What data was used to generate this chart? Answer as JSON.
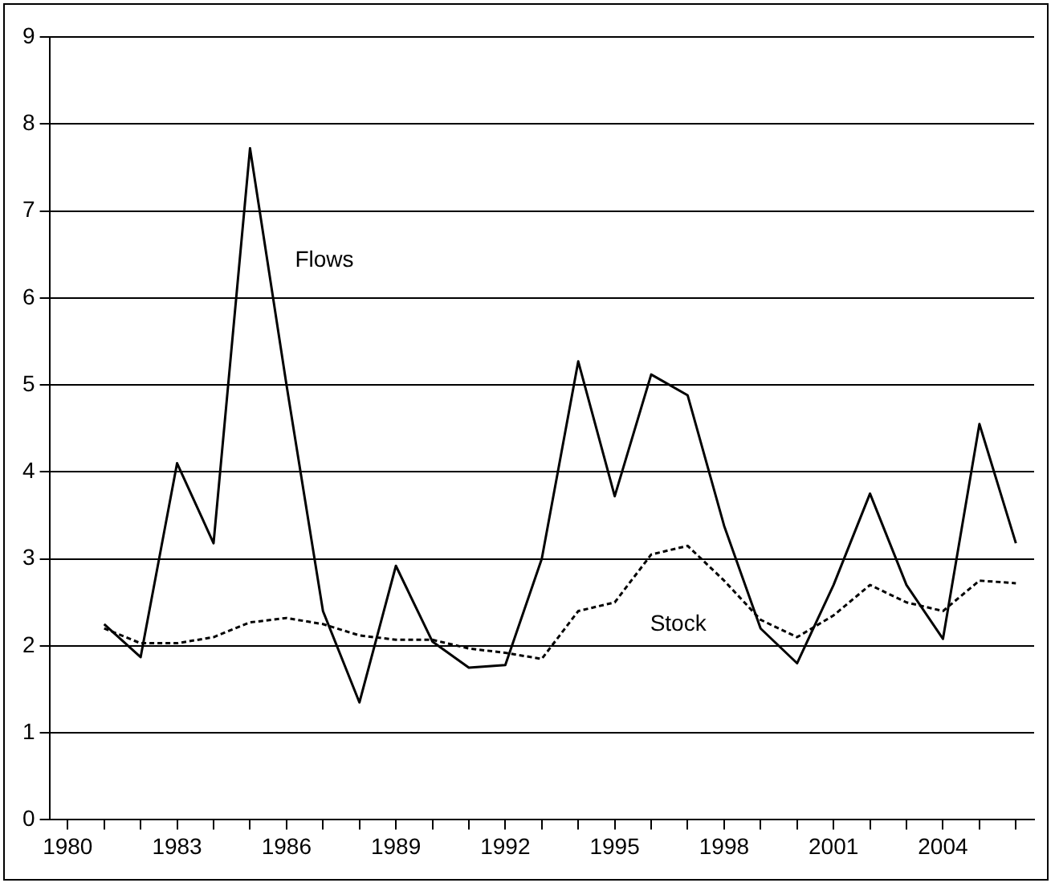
{
  "chart_data": {
    "type": "line",
    "x": [
      1981,
      1982,
      1983,
      1984,
      1985,
      1986,
      1987,
      1988,
      1989,
      1990,
      1991,
      1992,
      1993,
      1994,
      1995,
      1996,
      1997,
      1998,
      1999,
      2000,
      2001,
      2002,
      2003,
      2004,
      2005,
      2006
    ],
    "series": [
      {
        "name": "Flows",
        "color": "#000000",
        "line_style": "solid",
        "values": [
          2.25,
          1.87,
          4.1,
          3.18,
          7.72,
          5.0,
          2.4,
          1.35,
          2.92,
          2.05,
          1.75,
          1.78,
          3.0,
          5.27,
          3.72,
          5.12,
          4.88,
          3.38,
          2.2,
          1.8,
          2.7,
          3.75,
          2.7,
          2.08,
          4.55,
          3.18
        ]
      },
      {
        "name": "Stock",
        "color": "#000000",
        "line_style": "dotted",
        "values": [
          2.2,
          2.03,
          2.03,
          2.1,
          2.27,
          2.32,
          2.25,
          2.12,
          2.07,
          2.07,
          1.97,
          1.92,
          1.85,
          2.4,
          2.5,
          3.05,
          3.15,
          2.75,
          2.3,
          2.1,
          2.35,
          2.7,
          2.5,
          2.4,
          2.75,
          2.72
        ]
      }
    ],
    "xlim": [
      1979.5,
      2006.5
    ],
    "xticks": [
      {
        "value": 1980,
        "label": "1980"
      },
      {
        "value": 1981,
        "label": null
      },
      {
        "value": 1982,
        "label": null
      },
      {
        "value": 1983,
        "label": "1983"
      },
      {
        "value": 1984,
        "label": null
      },
      {
        "value": 1985,
        "label": null
      },
      {
        "value": 1986,
        "label": "1986"
      },
      {
        "value": 1987,
        "label": null
      },
      {
        "value": 1988,
        "label": null
      },
      {
        "value": 1989,
        "label": "1989"
      },
      {
        "value": 1990,
        "label": null
      },
      {
        "value": 1991,
        "label": null
      },
      {
        "value": 1992,
        "label": "1992"
      },
      {
        "value": 1993,
        "label": null
      },
      {
        "value": 1994,
        "label": null
      },
      {
        "value": 1995,
        "label": "1995"
      },
      {
        "value": 1996,
        "label": null
      },
      {
        "value": 1997,
        "label": null
      },
      {
        "value": 1998,
        "label": "1998"
      },
      {
        "value": 1999,
        "label": null
      },
      {
        "value": 2000,
        "label": null
      },
      {
        "value": 2001,
        "label": "2001"
      },
      {
        "value": 2002,
        "label": null
      },
      {
        "value": 2003,
        "label": null
      },
      {
        "value": 2004,
        "label": "2004"
      },
      {
        "value": 2005,
        "label": null
      },
      {
        "value": 2006,
        "label": null
      }
    ],
    "ylim": [
      0,
      9
    ],
    "yticks": [
      0,
      1,
      2,
      3,
      4,
      5,
      6,
      7,
      8,
      9
    ],
    "grid": "y",
    "legend": false,
    "marker": "none"
  }
}
